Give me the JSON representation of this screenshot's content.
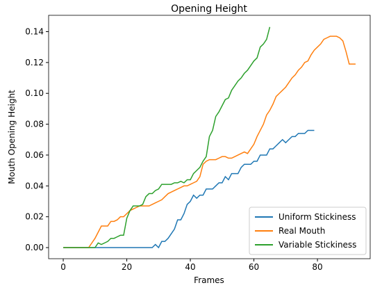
{
  "chart_data": {
    "type": "line",
    "title": "Opening Height",
    "xlabel": "Frames",
    "ylabel": "Mouth Opening Height",
    "xlim": [
      -4.6,
      96.6
    ],
    "ylim": [
      -0.0072,
      0.1506
    ],
    "xticks": [
      0,
      20,
      40,
      60,
      80
    ],
    "yticks": [
      {
        "value": 0,
        "label": "0.00"
      },
      {
        "value": 0.02,
        "label": "0.02"
      },
      {
        "value": 0.04,
        "label": "0.04"
      },
      {
        "value": 0.06,
        "label": "0.06"
      },
      {
        "value": 0.08,
        "label": "0.08"
      },
      {
        "value": 0.1,
        "label": "0.10"
      },
      {
        "value": 0.12,
        "label": "0.12"
      },
      {
        "value": 0.14,
        "label": "0.14"
      }
    ],
    "legend": "lower right",
    "series": [
      {
        "name": "Uniform Stickiness",
        "color": "#1f77b4",
        "x": [
          0,
          28,
          29,
          30,
          31,
          32,
          33,
          34,
          35,
          36,
          37,
          38,
          39,
          40,
          41,
          42,
          43,
          44,
          45,
          46,
          47,
          48,
          49,
          50,
          51,
          52,
          53,
          54,
          55,
          56,
          57,
          58,
          59,
          60,
          61,
          62,
          63,
          64,
          65,
          66,
          67,
          68,
          69,
          70,
          71,
          72,
          73,
          74,
          75,
          76,
          77,
          78,
          79
        ],
        "values": [
          0,
          0,
          0.002,
          0,
          0.004,
          0.004,
          0.006,
          0.009,
          0.012,
          0.018,
          0.018,
          0.022,
          0.028,
          0.03,
          0.034,
          0.032,
          0.034,
          0.034,
          0.038,
          0.038,
          0.038,
          0.04,
          0.042,
          0.042,
          0.046,
          0.044,
          0.048,
          0.048,
          0.048,
          0.052,
          0.054,
          0.054,
          0.054,
          0.056,
          0.056,
          0.06,
          0.06,
          0.06,
          0.064,
          0.064,
          0.066,
          0.068,
          0.07,
          0.068,
          0.07,
          0.072,
          0.072,
          0.074,
          0.074,
          0.074,
          0.076,
          0.076,
          0.076
        ]
      },
      {
        "name": "Real Mouth",
        "color": "#ff7f0e",
        "x": [
          0,
          8,
          9,
          10,
          11,
          12,
          13,
          14,
          15,
          16,
          17,
          18,
          19,
          20,
          21,
          22,
          23,
          24,
          25,
          26,
          27,
          28,
          29,
          30,
          31,
          32,
          33,
          34,
          35,
          36,
          37,
          38,
          39,
          40,
          41,
          42,
          43,
          44,
          45,
          46,
          47,
          48,
          49,
          50,
          51,
          52,
          53,
          54,
          55,
          56,
          57,
          58,
          59,
          60,
          61,
          62,
          63,
          64,
          65,
          66,
          67,
          68,
          69,
          70,
          71,
          72,
          73,
          74,
          75,
          76,
          77,
          78,
          79,
          80,
          81,
          82,
          83,
          84,
          85,
          86,
          87,
          88,
          89,
          90,
          91,
          92
        ],
        "values": [
          0,
          0,
          0.003,
          0.006,
          0.01,
          0.014,
          0.014,
          0.014,
          0.017,
          0.017,
          0.018,
          0.02,
          0.02,
          0.022,
          0.024,
          0.025,
          0.026,
          0.027,
          0.027,
          0.027,
          0.027,
          0.028,
          0.029,
          0.03,
          0.031,
          0.033,
          0.035,
          0.036,
          0.037,
          0.038,
          0.039,
          0.04,
          0.04,
          0.041,
          0.042,
          0.043,
          0.046,
          0.054,
          0.056,
          0.057,
          0.057,
          0.057,
          0.058,
          0.059,
          0.059,
          0.058,
          0.058,
          0.059,
          0.06,
          0.061,
          0.062,
          0.061,
          0.064,
          0.067,
          0.072,
          0.076,
          0.08,
          0.086,
          0.089,
          0.093,
          0.098,
          0.1,
          0.102,
          0.104,
          0.107,
          0.11,
          0.112,
          0.115,
          0.117,
          0.12,
          0.121,
          0.125,
          0.128,
          0.13,
          0.132,
          0.135,
          0.136,
          0.137,
          0.137,
          0.137,
          0.136,
          0.134,
          0.127,
          0.119,
          0.119,
          0.119
        ]
      },
      {
        "name": "Variable Stickiness",
        "color": "#2ca02c",
        "x": [
          0,
          10,
          11,
          12,
          13,
          14,
          15,
          16,
          17,
          18,
          19,
          20,
          21,
          22,
          23,
          24,
          25,
          26,
          27,
          28,
          29,
          30,
          31,
          32,
          33,
          34,
          35,
          36,
          37,
          38,
          39,
          40,
          41,
          42,
          43,
          44,
          45,
          46,
          47,
          48,
          49,
          50,
          51,
          52,
          53,
          54,
          55,
          56,
          57,
          58,
          59,
          60,
          61,
          62,
          63,
          64,
          65
        ],
        "values": [
          0,
          0,
          0.003,
          0.002,
          0.003,
          0.004,
          0.006,
          0.006,
          0.007,
          0.008,
          0.008,
          0.019,
          0.024,
          0.027,
          0.027,
          0.027,
          0.028,
          0.033,
          0.035,
          0.035,
          0.037,
          0.038,
          0.041,
          0.041,
          0.041,
          0.041,
          0.042,
          0.042,
          0.043,
          0.042,
          0.044,
          0.044,
          0.048,
          0.05,
          0.052,
          0.056,
          0.059,
          0.072,
          0.076,
          0.085,
          0.088,
          0.092,
          0.096,
          0.097,
          0.102,
          0.105,
          0.108,
          0.11,
          0.113,
          0.115,
          0.118,
          0.121,
          0.123,
          0.13,
          0.132,
          0.135,
          0.143
        ]
      }
    ]
  }
}
